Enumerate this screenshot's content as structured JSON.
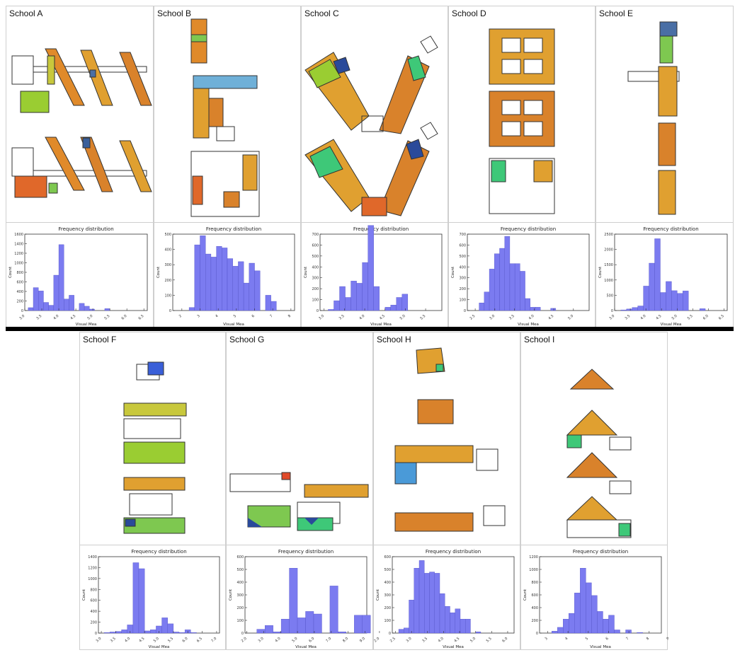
{
  "panels": [
    {
      "title": "School A"
    },
    {
      "title": "School B"
    },
    {
      "title": "School C"
    },
    {
      "title": "School D"
    },
    {
      "title": "School E"
    },
    {
      "title": "School F"
    },
    {
      "title": "School G"
    },
    {
      "title": "School H"
    },
    {
      "title": "School I"
    }
  ],
  "chart_data": [
    {
      "type": "bar",
      "title": "Frequency distribution",
      "xlabel": "Visual Mea",
      "ylabel": "Count",
      "xticks": [
        "3.0",
        "3.5",
        "4.0",
        "4.5",
        "5.0",
        "5.5",
        "6.0",
        "6.5"
      ],
      "yticks": [
        "0",
        "200",
        "400",
        "600",
        "800",
        "1000",
        "1200",
        "1400",
        "1600"
      ],
      "ylim": [
        0,
        1600
      ],
      "xlim": [
        3.0,
        6.6
      ],
      "bin_start": 3.1,
      "bin_width": 0.15,
      "values": [
        60,
        480,
        410,
        170,
        110,
        740,
        1380,
        240,
        320,
        0,
        150,
        90,
        30,
        0,
        0,
        40
      ]
    },
    {
      "type": "bar",
      "title": "Frequency distribution",
      "xlabel": "Visual Mea",
      "ylabel": "Count",
      "xticks": [
        "2",
        "3",
        "4",
        "5",
        "6",
        "7",
        "8"
      ],
      "yticks": [
        "0",
        "100",
        "200",
        "300",
        "400",
        "500"
      ],
      "ylim": [
        0,
        500
      ],
      "xlim": [
        1.5,
        8.2
      ],
      "bin_start": 2.4,
      "bin_width": 0.3,
      "values": [
        20,
        430,
        490,
        370,
        350,
        420,
        410,
        340,
        290,
        320,
        180,
        310,
        260,
        0,
        100,
        60
      ]
    },
    {
      "type": "bar",
      "title": "Frequency distribution",
      "xlabel": "Visual Mea",
      "ylabel": "Count",
      "xticks": [
        "3.0",
        "3.5",
        "4.0",
        "4.5",
        "5.0",
        "5.5"
      ],
      "yticks": [
        "0",
        "100",
        "200",
        "300",
        "400",
        "500",
        "600",
        "700"
      ],
      "ylim": [
        0,
        700
      ],
      "xlim": [
        2.9,
        5.9
      ],
      "bin_start": 3.1,
      "bin_width": 0.14,
      "values": [
        10,
        90,
        220,
        120,
        270,
        250,
        440,
        780,
        220,
        0,
        30,
        50,
        120,
        150
      ]
    },
    {
      "type": "bar",
      "title": "Frequency distribution",
      "xlabel": "Visual Mea",
      "ylabel": "Count",
      "xticks": [
        "2.5",
        "3.0",
        "3.5",
        "4.0",
        "4.5",
        "5.0"
      ],
      "yticks": [
        "0",
        "100",
        "200",
        "300",
        "400",
        "500",
        "600",
        "700"
      ],
      "ylim": [
        0,
        700
      ],
      "xlim": [
        2.3,
        5.4
      ],
      "bin_start": 2.6,
      "bin_width": 0.13,
      "values": [
        70,
        170,
        380,
        520,
        570,
        680,
        430,
        430,
        360,
        110,
        30,
        30,
        0,
        0,
        20
      ]
    },
    {
      "type": "bar",
      "title": "Frequency distribution",
      "xlabel": "Visual Mea",
      "ylabel": "Count",
      "xticks": [
        "3.0",
        "3.5",
        "4.0",
        "4.5",
        "5.0",
        "5.5",
        "6.0",
        "6.5"
      ],
      "yticks": [
        "0",
        "500",
        "1000",
        "1500",
        "2000",
        "2500"
      ],
      "ylim": [
        0,
        2500
      ],
      "xlim": [
        3.0,
        6.6
      ],
      "bin_start": 3.2,
      "bin_width": 0.18,
      "values": [
        20,
        50,
        100,
        150,
        800,
        1550,
        2350,
        590,
        950,
        650,
        560,
        640,
        0,
        0,
        60
      ]
    },
    {
      "type": "bar",
      "title": "Frequency distribution",
      "xlabel": "Visual Mea",
      "ylabel": "Count",
      "xticks": [
        "3.0",
        "3.5",
        "4.0",
        "4.5",
        "5.0",
        "5.5",
        "6.0",
        "6.5",
        "7.0"
      ],
      "yticks": [
        "0",
        "200",
        "400",
        "600",
        "800",
        "1000",
        "1200",
        "1400"
      ],
      "ylim": [
        0,
        1400
      ],
      "xlim": [
        2.9,
        7.1
      ],
      "bin_start": 3.1,
      "bin_width": 0.2,
      "values": [
        10,
        20,
        30,
        60,
        150,
        1290,
        1180,
        40,
        60,
        130,
        280,
        170,
        20,
        10,
        60,
        10
      ]
    },
    {
      "type": "bar",
      "title": "Frequency distribution",
      "xlabel": "Visual Mea",
      "ylabel": "Count",
      "xticks": [
        "2.0",
        "3.0",
        "4.0",
        "5.0",
        "6.0",
        "7.0",
        "8.0",
        "9.0"
      ],
      "yticks": [
        "0",
        "100",
        "200",
        "300",
        "400",
        "500",
        "600"
      ],
      "ylim": [
        0,
        600
      ],
      "xlim": [
        1.9,
        9.1
      ],
      "bin_start": 2.6,
      "bin_width": 0.48,
      "values": [
        30,
        60,
        10,
        110,
        510,
        120,
        170,
        150,
        0,
        370,
        10,
        0,
        140,
        140
      ]
    },
    {
      "type": "bar",
      "title": "Frequency distribution",
      "xlabel": "Visual Mea",
      "ylabel": "Count",
      "xticks": [
        "2.0",
        "2.5",
        "3.0",
        "3.5",
        "4.0",
        "4.5",
        "5.0",
        "5.5",
        "6.0"
      ],
      "yticks": [
        "0",
        "100",
        "200",
        "300",
        "400",
        "500",
        "600"
      ],
      "ylim": [
        0,
        600
      ],
      "xlim": [
        2.4,
        6.2
      ],
      "bin_start": 2.6,
      "bin_width": 0.16,
      "values": [
        30,
        40,
        260,
        510,
        570,
        470,
        480,
        470,
        310,
        210,
        160,
        190,
        110,
        110,
        0,
        10
      ]
    },
    {
      "type": "bar",
      "title": "Frequency distribution",
      "xlabel": "Visual Mea",
      "ylabel": "Count",
      "xticks": [
        "3",
        "4",
        "5",
        "6",
        "7",
        "8",
        "9"
      ],
      "yticks": [
        "0",
        "200",
        "400",
        "600",
        "800",
        "1000",
        "1200"
      ],
      "ylim": [
        0,
        1200
      ],
      "xlim": [
        2.6,
        8.6
      ],
      "bin_start": 3.2,
      "bin_width": 0.28,
      "values": [
        30,
        90,
        220,
        310,
        630,
        1020,
        790,
        590,
        340,
        220,
        280,
        50,
        0,
        50,
        0,
        10
      ]
    }
  ]
}
